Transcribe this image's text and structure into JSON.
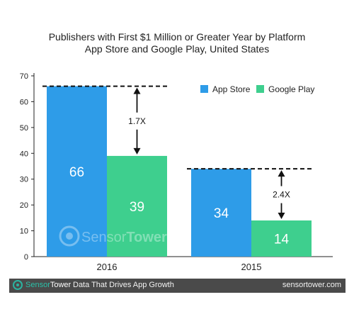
{
  "title_line1": "Publishers with First $1 Million or Greater Year by Platform",
  "title_line2": "App Store and Google Play, United States",
  "watermark": {
    "sensor": "Sensor",
    "tower": "Tower"
  },
  "footer": {
    "brand_sensor": "Sensor",
    "brand_tower": "Tower",
    "tagline": "Data That Drives App Growth",
    "site": "sensortower.com"
  },
  "colors": {
    "app_store": "#2e9ce8",
    "google_play": "#3ecf8e",
    "footer_bg": "#4a4a4a",
    "accent": "#2bb3a0"
  },
  "chart_data": {
    "type": "bar",
    "title": "Publishers with First $1 Million or Greater Year by Platform",
    "subtitle": "App Store and Google Play, United States",
    "categories": [
      "2016",
      "2015"
    ],
    "series": [
      {
        "name": "App Store",
        "values": [
          66,
          34
        ]
      },
      {
        "name": "Google Play",
        "values": [
          39,
          14
        ]
      }
    ],
    "ylim": [
      0,
      70
    ],
    "yticks": [
      0,
      10,
      20,
      30,
      40,
      50,
      60,
      70
    ],
    "legend": "top-right",
    "grid": false,
    "annotations": [
      {
        "category": "2016",
        "label": "1.7X",
        "from": 66,
        "to": 39
      },
      {
        "category": "2015",
        "label": "2.4X",
        "from": 34,
        "to": 14
      }
    ]
  }
}
